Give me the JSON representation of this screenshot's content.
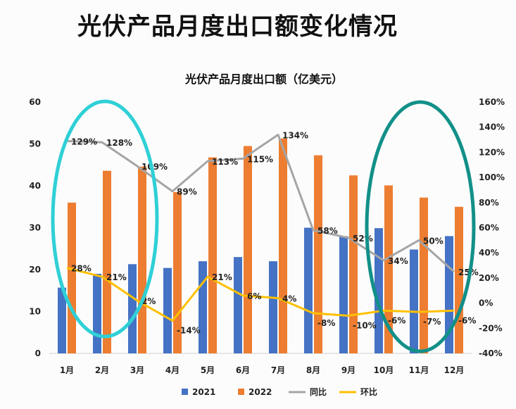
{
  "page_title": "光伏产品月度出口额变化情况",
  "colors": {
    "bar2021": "#4472c4",
    "bar2022": "#ed7d31",
    "yoy": "#a5a5a5",
    "mom": "#ffc000",
    "highlight_left": "#2fd0d6",
    "highlight_right": "#129089"
  },
  "chart_data": {
    "type": "bar",
    "title": "光伏产品月度出口额（亿美元）",
    "categories": [
      "1月",
      "2月",
      "3月",
      "4月",
      "5月",
      "6月",
      "7月",
      "8月",
      "9月",
      "10月",
      "11月",
      "12月"
    ],
    "series": [
      {
        "name": "2021",
        "kind": "bar",
        "axis": "left",
        "values": [
          15.7,
          19.0,
          21.3,
          20.4,
          22.0,
          23.0,
          22.0,
          30.0,
          28.0,
          29.9,
          24.8,
          28.0
        ]
      },
      {
        "name": "2022",
        "kind": "bar",
        "axis": "left",
        "values": [
          36.0,
          43.6,
          44.6,
          38.5,
          46.8,
          49.5,
          51.3,
          47.3,
          42.5,
          40.1,
          37.2,
          35.0
        ]
      },
      {
        "name": "同比",
        "kind": "line",
        "axis": "right",
        "values": [
          129,
          128,
          109,
          89,
          113,
          115,
          134,
          58,
          52,
          34,
          50,
          25
        ],
        "labels": [
          "129%",
          "128%",
          "109%",
          "89%",
          "113%",
          "115%",
          "134%",
          "58%",
          "52%",
          "34%",
          "50%",
          "25%"
        ]
      },
      {
        "name": "环比",
        "kind": "line",
        "axis": "right",
        "values": [
          28,
          21,
          2,
          -14,
          21,
          6,
          4,
          -8,
          -10,
          -6,
          -7,
          -6
        ],
        "labels": [
          "28%",
          "21%",
          "2%",
          "-14%",
          "21%",
          "6%",
          "4%",
          "-8%",
          "-10%",
          "-6%",
          "-7%",
          "-6%"
        ]
      }
    ],
    "ylim": [
      0,
      60
    ],
    "yticks": [
      "0",
      "10",
      "20",
      "30",
      "40",
      "50",
      "60"
    ],
    "y2lim": [
      -40,
      160
    ],
    "y2ticks": [
      "-40%",
      "-20%",
      "0%",
      "20%",
      "40%",
      "60%",
      "80%",
      "100%",
      "120%",
      "140%",
      "160%"
    ],
    "xlabel": "",
    "ylabel": "",
    "legend": {
      "position": "bottom",
      "items": [
        "2021",
        "2022",
        "同比",
        "环比"
      ]
    },
    "annotations": [
      {
        "type": "ellipse",
        "around_months": [
          "1月",
          "2月",
          "3月"
        ],
        "color_key": "highlight_left"
      },
      {
        "type": "ellipse",
        "around_months": [
          "10月",
          "11月",
          "12月"
        ],
        "color_key": "highlight_right"
      }
    ]
  }
}
